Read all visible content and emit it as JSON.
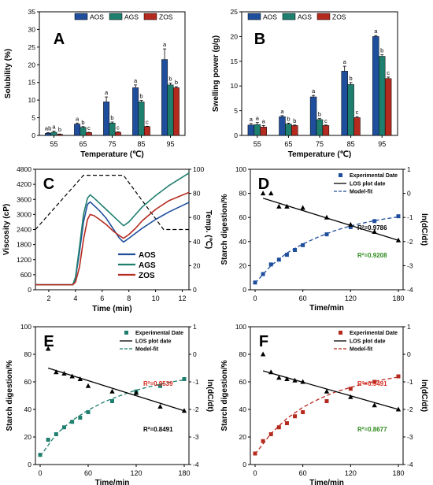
{
  "chart_data": [
    {
      "panel": "A",
      "type": "bar",
      "xlabel": "Temperature (℃)",
      "ylabel": "Solubility (%)",
      "ylim": [
        0,
        35
      ],
      "yticks": [
        "0",
        "5",
        "10",
        "15",
        "20",
        "25",
        "30",
        "35"
      ],
      "categories": [
        "55",
        "65",
        "75",
        "85",
        "95"
      ],
      "legend_position": "top-center",
      "series": [
        {
          "name": "AOS",
          "color": "#1f4e9c",
          "values": [
            0.6,
            3.2,
            9.5,
            13.5,
            21.5
          ],
          "errors": [
            0.2,
            0.3,
            1.4,
            0.8,
            3.0
          ],
          "letters": [
            "ab",
            "a",
            "a",
            "a",
            "a"
          ]
        },
        {
          "name": "AGS",
          "color": "#1f7f6e",
          "values": [
            0.9,
            2.3,
            3.5,
            9.5,
            14.3
          ],
          "errors": [
            0.3,
            0.2,
            0.3,
            0.4,
            0.5
          ],
          "letters": [
            "a",
            "b",
            "b",
            "b",
            "b"
          ]
        },
        {
          "name": "ZOS",
          "color": "#b52a1e",
          "values": [
            0.3,
            0.8,
            0.9,
            2.5,
            13.5
          ],
          "errors": [
            0.1,
            0.1,
            0.1,
            0.1,
            0.3
          ],
          "letters": [
            "b",
            "c",
            "c",
            "c",
            "b"
          ]
        }
      ]
    },
    {
      "panel": "B",
      "type": "bar",
      "xlabel": "Temperature (℃)",
      "ylabel": "Swelling power (g/g)",
      "ylim": [
        0,
        25
      ],
      "yticks": [
        "0",
        "5",
        "10",
        "15",
        "20",
        "25"
      ],
      "categories": [
        "55",
        "65",
        "75",
        "85",
        "95"
      ],
      "legend_position": "top-left",
      "series": [
        {
          "name": "AOS",
          "color": "#1f4e9c",
          "values": [
            2.1,
            3.8,
            7.8,
            13.0,
            20.0
          ],
          "errors": [
            0.3,
            0.2,
            0.3,
            1.0,
            0.2
          ],
          "letters": [
            "a",
            "a",
            "a",
            "a",
            "a"
          ]
        },
        {
          "name": "AGS",
          "color": "#1f7f6e",
          "values": [
            2.2,
            2.3,
            3.2,
            10.3,
            16.0
          ],
          "errors": [
            0.4,
            0.2,
            0.2,
            0.4,
            0.3
          ],
          "letters": [
            "a",
            "b",
            "b",
            "b",
            "b"
          ]
        },
        {
          "name": "ZOS",
          "color": "#b52a1e",
          "values": [
            1.7,
            2.0,
            2.0,
            3.6,
            11.5
          ],
          "errors": [
            0.3,
            0.1,
            0.1,
            0.2,
            0.3
          ],
          "letters": [
            "a",
            "b",
            "c",
            "c",
            "c"
          ]
        }
      ]
    },
    {
      "panel": "C",
      "type": "line",
      "xlabel": "Time (min)",
      "ylabel": "Viscosity (cP)",
      "y2label": "Temp. (℃)",
      "xlim": [
        1,
        12.5
      ],
      "xticks": [
        2,
        4,
        6,
        8,
        10,
        12
      ],
      "ylim": [
        0,
        4800
      ],
      "yticks": [
        0,
        600,
        1200,
        1800,
        2400,
        3000,
        3600,
        4200,
        4800
      ],
      "y2lim": [
        0,
        100
      ],
      "y2ticks": [
        0,
        20,
        40,
        60,
        80,
        100
      ],
      "legend_position": "bottom-right",
      "series": [
        {
          "name": "AOS",
          "color": "#1f4e9c",
          "x": [
            1,
            3.8,
            4.0,
            4.3,
            4.6,
            4.9,
            5.1,
            5.4,
            5.8,
            6.3,
            6.8,
            7.3,
            7.6,
            8.0,
            8.5,
            9,
            10,
            11,
            12.5
          ],
          "y": [
            200,
            200,
            450,
            1500,
            2700,
            3400,
            3500,
            3350,
            3150,
            2850,
            2450,
            2050,
            1900,
            2050,
            2250,
            2450,
            2800,
            3100,
            3480
          ]
        },
        {
          "name": "AGS",
          "color": "#1f7f6e",
          "x": [
            1,
            3.8,
            4.0,
            4.3,
            4.6,
            4.9,
            5.1,
            5.4,
            5.8,
            6.3,
            6.8,
            7.3,
            7.6,
            8.0,
            8.5,
            9,
            10,
            11,
            12.5
          ],
          "y": [
            200,
            200,
            500,
            1700,
            3000,
            3650,
            3780,
            3650,
            3450,
            3200,
            2950,
            2700,
            2550,
            2700,
            3000,
            3300,
            3750,
            4150,
            4650
          ]
        },
        {
          "name": "ZOS",
          "color": "#b52a1e",
          "x": [
            1,
            3.8,
            4.0,
            4.3,
            4.6,
            4.9,
            5.1,
            5.4,
            5.8,
            6.3,
            6.8,
            7.3,
            7.6,
            8.0,
            8.5,
            9,
            10,
            11,
            12.5
          ],
          "y": [
            200,
            200,
            300,
            900,
            2000,
            2800,
            3000,
            2950,
            2800,
            2600,
            2350,
            2150,
            2050,
            2200,
            2450,
            2750,
            3200,
            3550,
            3880
          ]
        }
      ],
      "temperature_profile": {
        "color": "#000000",
        "style": "dashed",
        "x": [
          1,
          4.6,
          5.2,
          7.6,
          10.6,
          12.5
        ],
        "y": [
          50,
          95,
          95,
          95,
          50,
          50
        ]
      }
    },
    {
      "panel": "D",
      "type": "scatter",
      "xlabel": "Time/min",
      "ylabel": "Starch digestion/%",
      "y2label": "ln(dC/dt)",
      "xlim": [
        0,
        180
      ],
      "xticks": [
        0,
        60,
        120,
        180
      ],
      "ylim": [
        0,
        100
      ],
      "yticks": [
        0,
        20,
        40,
        60,
        80,
        100
      ],
      "y2lim": [
        -4,
        1
      ],
      "y2ticks": [
        1,
        0,
        -1,
        -2,
        -3,
        -4
      ],
      "legend": [
        "Experimental Date",
        "LOS plot date",
        "Model-fit"
      ],
      "legend_position": "top-right",
      "accent": "#1f4e9c",
      "experimental": {
        "x": [
          0,
          10,
          20,
          30,
          40,
          50,
          60,
          90,
          120,
          150,
          180
        ],
        "y": [
          6,
          13,
          21,
          25,
          29,
          33,
          37,
          46,
          52,
          57,
          61
        ]
      },
      "model_fit": {
        "x": [
          0,
          20,
          40,
          60,
          80,
          100,
          120,
          140,
          160,
          180
        ],
        "y": [
          5.5,
          20,
          30.5,
          38,
          44,
          49,
          53,
          56,
          58.5,
          60.5
        ]
      },
      "los_points": {
        "x": [
          10,
          20,
          30,
          40,
          60,
          90,
          120,
          150,
          180
        ],
        "y": [
          0.0,
          0.0,
          -0.55,
          -0.55,
          -0.6,
          -1.0,
          -1.3,
          -1.6,
          -1.95
        ]
      },
      "los_line": {
        "x": [
          10,
          180
        ],
        "y": [
          -0.2,
          -1.95
        ]
      },
      "annotations": [
        {
          "text": "R²=0.9786",
          "color": "#000000"
        },
        {
          "text": "R²=0.9208",
          "color": "#2e8b1e"
        }
      ]
    },
    {
      "panel": "E",
      "type": "scatter",
      "xlabel": "Time/min",
      "ylabel": "Starch digestion/%",
      "y2label": "ln(dC/dt)",
      "xlim": [
        0,
        180
      ],
      "xticks": [
        0,
        60,
        120,
        180
      ],
      "ylim": [
        0,
        100
      ],
      "yticks": [
        0,
        20,
        40,
        60,
        80,
        100
      ],
      "y2lim": [
        -4,
        1
      ],
      "y2ticks": [
        1,
        0,
        -1,
        -2,
        -3,
        -4
      ],
      "legend": [
        "Experimental Date",
        "LOS plot date",
        "Model-fit"
      ],
      "legend_position": "top-right",
      "accent": "#1f7f6e",
      "experimental": {
        "x": [
          0,
          10,
          20,
          30,
          40,
          50,
          60,
          90,
          120,
          150,
          180
        ],
        "y": [
          7,
          18,
          22,
          27,
          31,
          34,
          38,
          46,
          53,
          57,
          62
        ]
      },
      "model_fit": {
        "x": [
          0,
          20,
          40,
          60,
          80,
          100,
          120,
          140,
          160,
          180
        ],
        "y": [
          6,
          22,
          32,
          39.5,
          45.5,
          50,
          54,
          57,
          59.5,
          61.5
        ]
      },
      "los_points": {
        "x": [
          10,
          20,
          30,
          40,
          50,
          60,
          90,
          120,
          150,
          180
        ],
        "y": [
          0.2,
          -0.65,
          -0.7,
          -0.8,
          -0.9,
          -1.15,
          -1.35,
          -1.4,
          -1.9,
          -2.05
        ]
      },
      "los_line": {
        "x": [
          10,
          180
        ],
        "y": [
          -0.5,
          -2.05
        ]
      },
      "annotations": [
        {
          "text": "R²=0.9539",
          "color": "#d62a1e"
        },
        {
          "text": "R²=0.8491",
          "color": "#000000"
        }
      ]
    },
    {
      "panel": "F",
      "type": "scatter",
      "xlabel": "Time/min",
      "ylabel": "Starch digestion/%",
      "y2label": "ln(dC/dt)",
      "xlim": [
        0,
        180
      ],
      "xticks": [
        0,
        60,
        120,
        180
      ],
      "ylim": [
        0,
        100
      ],
      "yticks": [
        0,
        20,
        40,
        60,
        80,
        100
      ],
      "y2lim": [
        -4,
        1
      ],
      "y2ticks": [
        1,
        0,
        -1,
        -2,
        -3,
        -4
      ],
      "legend": [
        "Experimental Date",
        "LOS plot date",
        "Model-fit"
      ],
      "legend_position": "top-right",
      "accent": "#b52a1e",
      "experimental": {
        "x": [
          0,
          10,
          20,
          30,
          40,
          50,
          60,
          90,
          120,
          150,
          180
        ],
        "y": [
          8,
          17,
          22,
          27,
          30,
          35,
          38,
          46,
          55,
          60,
          64
        ]
      },
      "model_fit": {
        "x": [
          0,
          20,
          40,
          60,
          80,
          100,
          120,
          140,
          160,
          180
        ],
        "y": [
          7.5,
          22.5,
          33.5,
          41.5,
          47.5,
          52.5,
          56,
          59,
          61.5,
          63.5
        ]
      },
      "los_points": {
        "x": [
          10,
          20,
          30,
          40,
          50,
          60,
          90,
          120,
          150,
          180
        ],
        "y": [
          0.0,
          -0.65,
          -0.85,
          -0.9,
          -0.95,
          -1.0,
          -1.35,
          -1.55,
          -1.85,
          -2.0
        ]
      },
      "los_line": {
        "x": [
          10,
          180
        ],
        "y": [
          -0.6,
          -2.0
        ]
      },
      "annotations": [
        {
          "text": "R²=0.9491",
          "color": "#d62a1e"
        },
        {
          "text": "R²=0.8677",
          "color": "#2e8b1e"
        }
      ]
    }
  ]
}
